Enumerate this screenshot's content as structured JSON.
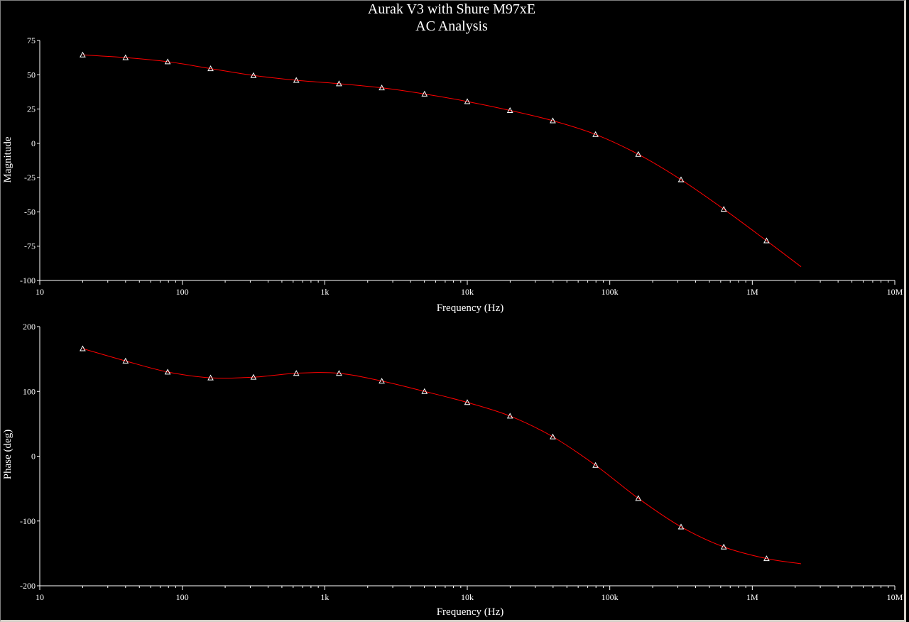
{
  "window": {
    "title_line1": "Aurak V3 with Shure M97xE",
    "title_line2": "AC Analysis"
  },
  "colors": {
    "background": "#000000",
    "axis": "#ffffff",
    "trace": "#ff0000",
    "marker": "#ffffff"
  },
  "chart_data": [
    {
      "type": "line",
      "title": "",
      "xlabel": "Frequency (Hz)",
      "ylabel": "Magnitude",
      "xscale": "log",
      "xlim": [
        10,
        10000000
      ],
      "ylim": [
        -100,
        75
      ],
      "xticks": [
        10,
        100,
        1000,
        10000,
        100000,
        1000000,
        10000000
      ],
      "xtick_labels": [
        "10",
        "100",
        "1k",
        "10k",
        "100k",
        "1M",
        "10M"
      ],
      "yticks": [
        75,
        50,
        25,
        0,
        -25,
        -50,
        -75,
        -100
      ],
      "ytick_labels": [
        "75",
        "50",
        "25",
        "0",
        "-25",
        "-50",
        "-75",
        "-100"
      ],
      "grid": false,
      "series": [
        {
          "color": "#ff0000",
          "marker": "triangle",
          "x": [
            20,
            40,
            79,
            158,
            316,
            631,
            1259,
            2512,
            5012,
            10000,
            19953,
            39811,
            79433,
            158489,
            316228,
            630957,
            1258925,
            2200000
          ],
          "y": [
            64.5,
            62.5,
            59.5,
            54.5,
            49.5,
            46.0,
            43.5,
            40.5,
            36.0,
            30.5,
            24.0,
            16.5,
            6.5,
            -8.0,
            -26.5,
            -48.0,
            -71.0,
            -90.0
          ],
          "marker_count": 17
        }
      ]
    },
    {
      "type": "line",
      "title": "",
      "xlabel": "Frequency (Hz)",
      "ylabel": "Phase (deg)",
      "xscale": "log",
      "xlim": [
        10,
        10000000
      ],
      "ylim": [
        -200,
        200
      ],
      "xticks": [
        10,
        100,
        1000,
        10000,
        100000,
        1000000,
        10000000
      ],
      "xtick_labels": [
        "10",
        "100",
        "1k",
        "10k",
        "100k",
        "1M",
        "10M"
      ],
      "yticks": [
        200,
        100,
        0,
        -100,
        -200
      ],
      "ytick_labels": [
        "200",
        "100",
        "0",
        "-100",
        "-200"
      ],
      "grid": false,
      "series": [
        {
          "color": "#ff0000",
          "marker": "triangle",
          "x": [
            20,
            40,
            79,
            158,
            316,
            631,
            1259,
            2512,
            5012,
            10000,
            19953,
            39811,
            79433,
            158489,
            316228,
            630957,
            1258925,
            2200000
          ],
          "y": [
            166,
            147,
            130,
            121,
            122,
            128,
            128,
            116,
            100,
            83,
            62,
            30,
            -14,
            -65,
            -109,
            -140,
            -158,
            -166
          ],
          "marker_count": 17
        }
      ]
    }
  ]
}
